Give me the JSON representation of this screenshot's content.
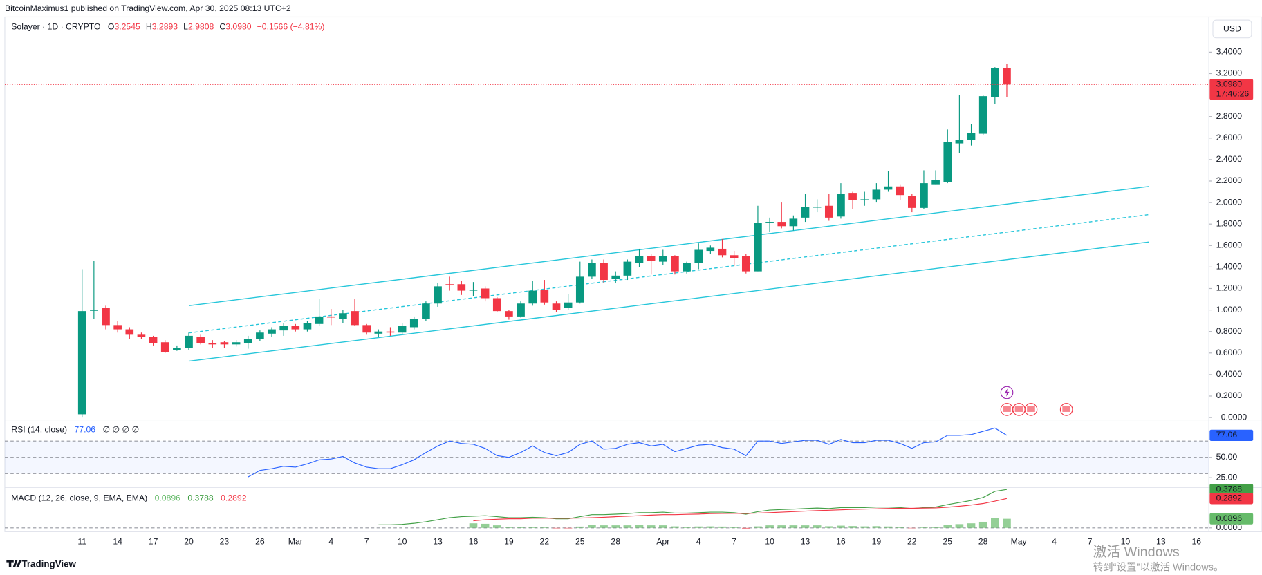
{
  "page": {
    "publisher": "BitcoinMaximus1 published on TradingView.com, Apr 30, 2025 08:13 UTC+2",
    "currency": "USD",
    "countdown": "17:46:26",
    "brand": "TradingView",
    "watermark": [
      "激活 Windows",
      "转到“设置”以激活 Windows。"
    ]
  },
  "chart_data": [
    {
      "type": "candlestick",
      "header": {
        "symbol": "Solayer · 1D · CRYPTO",
        "ohlc": [
          {
            "key": "O",
            "value": "3.2545"
          },
          {
            "key": "H",
            "value": "3.2893"
          },
          {
            "key": "L",
            "value": "2.9808"
          },
          {
            "key": "C",
            "value": "3.0980"
          }
        ],
        "change": "−0.1566 (−4.81%)"
      },
      "categories": [
        "11",
        null,
        null,
        "14",
        null,
        null,
        "17",
        null,
        null,
        "20",
        null,
        null,
        "23",
        null,
        null,
        "26",
        null,
        null,
        "Mar",
        null,
        null,
        "4",
        null,
        null,
        "7",
        null,
        null,
        "10",
        null,
        null,
        "13",
        null,
        null,
        "16",
        null,
        null,
        "19",
        null,
        null,
        "22",
        null,
        null,
        "25",
        null,
        null,
        "28",
        null,
        null,
        null,
        "Apr",
        null,
        null,
        "4",
        null,
        null,
        "7",
        null,
        null,
        "10",
        null,
        null,
        "13",
        null,
        null,
        "16",
        null,
        null,
        "19",
        null,
        null,
        "22",
        null,
        null,
        "25",
        null,
        null,
        "28",
        null,
        null,
        "May",
        null,
        null,
        "4",
        null,
        null,
        "7",
        null,
        null,
        "10",
        null,
        null,
        "13",
        null,
        null,
        "16"
      ],
      "open": [
        0.03,
        1.0,
        1.02,
        0.86,
        0.82,
        0.77,
        0.75,
        0.7,
        0.63,
        0.65,
        0.75,
        0.69,
        0.7,
        0.68,
        0.69,
        0.73,
        0.78,
        0.81,
        0.85,
        0.82,
        0.87,
        0.94,
        0.92,
        0.99,
        0.86,
        0.78,
        0.8,
        0.79,
        0.84,
        0.92,
        1.06,
        1.24,
        1.24,
        1.18,
        1.2,
        1.11,
        0.99,
        0.94,
        1.06,
        1.19,
        1.06,
        1.02,
        1.07,
        1.31,
        1.44,
        1.29,
        1.32,
        1.44,
        1.5,
        1.45,
        1.5,
        1.36,
        1.44,
        1.55,
        1.57,
        1.51,
        1.5,
        1.36,
        1.81,
        1.82,
        1.78,
        1.86,
        1.96,
        1.97,
        1.87,
        2.09,
        2.02,
        2.03,
        2.12,
        2.15,
        2.06,
        1.95,
        2.17,
        2.19,
        2.55,
        2.58,
        2.64,
        2.98,
        3.2545,
        null,
        null,
        null,
        null,
        null,
        null,
        null,
        null,
        null,
        null,
        null,
        null,
        null,
        null,
        null,
        null
      ],
      "high": [
        1.38,
        1.46,
        1.04,
        0.9,
        0.84,
        0.79,
        0.76,
        0.72,
        0.67,
        0.79,
        0.77,
        0.72,
        0.71,
        0.72,
        0.76,
        0.81,
        0.84,
        0.88,
        0.87,
        0.9,
        1.1,
        1.01,
        1.0,
        1.1,
        0.87,
        0.82,
        0.84,
        0.88,
        0.94,
        1.08,
        1.25,
        1.31,
        1.27,
        1.26,
        1.22,
        1.12,
        1.0,
        1.08,
        1.27,
        1.28,
        1.08,
        1.15,
        1.45,
        1.47,
        1.47,
        1.36,
        1.47,
        1.57,
        1.52,
        1.56,
        1.51,
        1.45,
        1.62,
        1.6,
        1.66,
        1.55,
        1.52,
        1.97,
        1.86,
        2.0,
        1.88,
        2.08,
        2.03,
        2.08,
        2.18,
        2.1,
        2.1,
        2.18,
        2.29,
        2.17,
        2.08,
        2.3,
        2.3,
        2.68,
        3.0,
        2.73,
        3.0,
        3.26,
        3.2893,
        null,
        null,
        null,
        null,
        null,
        null,
        null,
        null,
        null,
        null,
        null,
        null,
        null,
        null,
        null,
        null
      ],
      "low": [
        0.0,
        0.92,
        0.82,
        0.79,
        0.73,
        0.73,
        0.67,
        0.6,
        0.62,
        0.63,
        0.68,
        0.65,
        0.65,
        0.66,
        0.64,
        0.71,
        0.75,
        0.76,
        0.8,
        0.8,
        0.85,
        0.86,
        0.88,
        0.85,
        0.77,
        0.75,
        0.76,
        0.77,
        0.82,
        0.9,
        1.03,
        1.18,
        1.14,
        1.13,
        1.08,
        0.98,
        0.91,
        0.93,
        1.04,
        1.05,
        0.98,
        1.0,
        1.06,
        1.29,
        1.25,
        1.25,
        1.28,
        1.4,
        1.33,
        1.42,
        1.33,
        1.34,
        1.38,
        1.52,
        1.49,
        1.41,
        1.34,
        1.36,
        1.73,
        1.76,
        1.74,
        1.82,
        1.91,
        1.83,
        1.85,
        1.94,
        1.97,
        2.0,
        2.1,
        2.02,
        1.91,
        1.94,
        2.17,
        2.18,
        2.46,
        2.53,
        2.63,
        2.92,
        2.9808,
        null,
        null,
        null,
        null,
        null,
        null,
        null,
        null,
        null,
        null,
        null,
        null,
        null,
        null,
        null,
        null
      ],
      "close": [
        0.99,
        1.0,
        0.86,
        0.82,
        0.77,
        0.75,
        0.69,
        0.61,
        0.65,
        0.76,
        0.69,
        0.68,
        0.68,
        0.7,
        0.73,
        0.79,
        0.82,
        0.85,
        0.82,
        0.88,
        0.94,
        0.93,
        0.97,
        0.86,
        0.79,
        0.8,
        0.79,
        0.85,
        0.92,
        1.06,
        1.22,
        1.23,
        1.18,
        1.19,
        1.11,
        0.99,
        0.94,
        1.06,
        1.18,
        1.07,
        1.0,
        1.07,
        1.31,
        1.44,
        1.28,
        1.32,
        1.45,
        1.5,
        1.46,
        1.5,
        1.36,
        1.44,
        1.56,
        1.58,
        1.51,
        1.48,
        1.36,
        1.81,
        1.82,
        1.78,
        1.85,
        1.96,
        1.96,
        1.86,
        2.08,
        2.02,
        2.03,
        2.12,
        2.15,
        2.07,
        1.95,
        2.18,
        2.21,
        2.56,
        2.58,
        2.65,
        2.99,
        3.25,
        3.098,
        null,
        null,
        null,
        null,
        null,
        null,
        null,
        null,
        null,
        null,
        null,
        null,
        null,
        null,
        null,
        null
      ],
      "up_color": "#089981",
      "down_color": "#f23645",
      "ylim": [
        -0.015,
        3.72
      ],
      "yticks": [
        {
          "value": 0,
          "label": "−0.0000"
        },
        {
          "value": 0.2,
          "label": "0.2000"
        },
        {
          "value": 0.4,
          "label": "0.4000"
        },
        {
          "value": 0.6,
          "label": "0.6000"
        },
        {
          "value": 0.8,
          "label": "0.8000"
        },
        {
          "value": 1,
          "label": "1.0000"
        },
        {
          "value": 1.2,
          "label": "1.2000"
        },
        {
          "value": 1.4,
          "label": "1.4000"
        },
        {
          "value": 1.6,
          "label": "1.6000"
        },
        {
          "value": 1.8,
          "label": "1.8000"
        },
        {
          "value": 2,
          "label": "2.0000"
        },
        {
          "value": 2.2,
          "label": "2.2000"
        },
        {
          "value": 2.4,
          "label": "2.4000"
        },
        {
          "value": 2.6,
          "label": "2.6000"
        },
        {
          "value": 2.8,
          "label": "2.8000"
        },
        {
          "value": 3.2,
          "label": "3.2000"
        },
        {
          "value": 3.4,
          "label": "3.4000"
        }
      ],
      "grid": false,
      "trend_color": "#26c6da",
      "trend_lines": [
        {
          "x": [
            9,
            90
          ],
          "y": [
            1.04,
            2.15
          ],
          "style": "solid"
        },
        {
          "x": [
            9,
            90
          ],
          "y": [
            0.787,
            1.888
          ],
          "style": "dashed"
        },
        {
          "x": [
            9,
            90
          ],
          "y": [
            0.524,
            1.633
          ],
          "style": "solid"
        }
      ]
    },
    {
      "type": "line",
      "title": "RSI (14, close)",
      "extra": "∅ ∅ ∅ ∅",
      "color": "#2962ff",
      "values": [
        null,
        null,
        null,
        null,
        null,
        null,
        null,
        null,
        null,
        null,
        null,
        null,
        null,
        null,
        26,
        34,
        36,
        39,
        38,
        42,
        47,
        48,
        51,
        43,
        38,
        36,
        36,
        41,
        47,
        56,
        64,
        70,
        67,
        66,
        61,
        52,
        50,
        56,
        64,
        56,
        52,
        56,
        66,
        70,
        60,
        61,
        66,
        68,
        64,
        66,
        57,
        61,
        65,
        66,
        62,
        60,
        52,
        70,
        70,
        67,
        69,
        71,
        71,
        66,
        72,
        68,
        68,
        71,
        71,
        67,
        61,
        68,
        69,
        77,
        77,
        78,
        82,
        86,
        77.06,
        null,
        null,
        null,
        null,
        null,
        null,
        null,
        null,
        null,
        null,
        null,
        null,
        null,
        null,
        null,
        null
      ],
      "ylim": [
        14,
        95
      ],
      "yticks": [
        {
          "value": 50,
          "label": "50.00"
        },
        {
          "value": 25,
          "label": "25.00"
        }
      ],
      "hlines": [
        70,
        50,
        30
      ],
      "band_color": "#2962ff"
    },
    {
      "type": "macd",
      "title": "MACD (12, 26, close, 9, EMA, EMA)",
      "series": [
        {
          "style": "histogram",
          "color": "#66bb6a",
          "down_color": "#f23645",
          "values": [
            null,
            null,
            null,
            null,
            null,
            null,
            null,
            null,
            null,
            null,
            null,
            null,
            null,
            null,
            null,
            null,
            null,
            null,
            null,
            null,
            null,
            null,
            null,
            null,
            null,
            null,
            null,
            null,
            null,
            null,
            null,
            null,
            null,
            0.045,
            0.04,
            0.025,
            0.01,
            0.01,
            0.01,
            0.005,
            -0.005,
            -0.005,
            0.013,
            0.03,
            0.025,
            0.025,
            0.025,
            0.03,
            0.025,
            0.025,
            0.015,
            0.012,
            0.014,
            0.015,
            0.013,
            0.007,
            -0.007,
            0.015,
            0.025,
            0.025,
            0.025,
            0.025,
            0.025,
            0.016,
            0.022,
            0.018,
            0.015,
            0.017,
            0.014,
            0.007,
            -0.003,
            0.005,
            0.008,
            0.026,
            0.037,
            0.045,
            0.06,
            0.096,
            0.0896,
            null,
            null,
            null,
            null,
            null,
            null,
            null,
            null,
            null,
            null,
            null,
            null,
            null,
            null,
            null,
            null
          ]
        },
        {
          "style": "line",
          "color": "#43a047",
          "values": [
            null,
            null,
            null,
            null,
            null,
            null,
            null,
            null,
            null,
            null,
            null,
            null,
            null,
            null,
            null,
            null,
            null,
            null,
            null,
            null,
            null,
            null,
            null,
            null,
            null,
            0.03,
            0.03,
            0.035,
            0.045,
            0.06,
            0.08,
            0.1,
            0.11,
            0.115,
            0.12,
            0.11,
            0.1,
            0.1,
            0.105,
            0.1,
            0.09,
            0.09,
            0.11,
            0.13,
            0.13,
            0.135,
            0.14,
            0.15,
            0.15,
            0.155,
            0.145,
            0.145,
            0.15,
            0.155,
            0.155,
            0.15,
            0.135,
            0.16,
            0.175,
            0.18,
            0.185,
            0.19,
            0.195,
            0.19,
            0.2,
            0.2,
            0.2,
            0.205,
            0.205,
            0.2,
            0.19,
            0.2,
            0.205,
            0.23,
            0.25,
            0.27,
            0.3,
            0.36,
            0.3788,
            null,
            null,
            null,
            null,
            null,
            null,
            null,
            null,
            null,
            null,
            null,
            null,
            null,
            null,
            null,
            null
          ]
        },
        {
          "style": "line",
          "color": "#f23645",
          "values": [
            null,
            null,
            null,
            null,
            null,
            null,
            null,
            null,
            null,
            null,
            null,
            null,
            null,
            null,
            null,
            null,
            null,
            null,
            null,
            null,
            null,
            null,
            null,
            null,
            null,
            null,
            null,
            null,
            null,
            null,
            null,
            null,
            null,
            0.07,
            0.08,
            0.085,
            0.09,
            0.09,
            0.095,
            0.095,
            0.095,
            0.095,
            0.097,
            0.1,
            0.105,
            0.11,
            0.115,
            0.12,
            0.125,
            0.13,
            0.13,
            0.133,
            0.136,
            0.14,
            0.142,
            0.143,
            0.142,
            0.145,
            0.15,
            0.155,
            0.16,
            0.165,
            0.17,
            0.174,
            0.178,
            0.182,
            0.185,
            0.188,
            0.191,
            0.193,
            0.193,
            0.195,
            0.197,
            0.204,
            0.213,
            0.225,
            0.24,
            0.264,
            0.2892,
            null,
            null,
            null,
            null,
            null,
            null,
            null,
            null,
            null,
            null,
            null,
            null,
            null,
            null,
            null,
            null
          ]
        }
      ],
      "ylim": [
        -0.03,
        0.39
      ],
      "yticks": [
        {
          "value": 0,
          "label": "0.0000"
        }
      ]
    }
  ]
}
